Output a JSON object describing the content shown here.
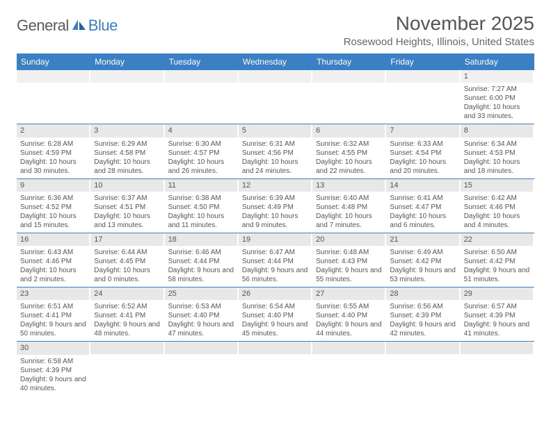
{
  "logo": {
    "part1": "General",
    "part2": "Blue"
  },
  "title": "November 2025",
  "location": "Rosewood Heights, Illinois, United States",
  "weekdays": [
    "Sunday",
    "Monday",
    "Tuesday",
    "Wednesday",
    "Thursday",
    "Friday",
    "Saturday"
  ],
  "colors": {
    "header_bg": "#3b7fc4",
    "daynum_bg": "#e8e8e8",
    "text": "#555555"
  },
  "weeks": [
    [
      {
        "n": "",
        "sunrise": "",
        "sunset": "",
        "daylight": ""
      },
      {
        "n": "",
        "sunrise": "",
        "sunset": "",
        "daylight": ""
      },
      {
        "n": "",
        "sunrise": "",
        "sunset": "",
        "daylight": ""
      },
      {
        "n": "",
        "sunrise": "",
        "sunset": "",
        "daylight": ""
      },
      {
        "n": "",
        "sunrise": "",
        "sunset": "",
        "daylight": ""
      },
      {
        "n": "",
        "sunrise": "",
        "sunset": "",
        "daylight": ""
      },
      {
        "n": "1",
        "sunrise": "Sunrise: 7:27 AM",
        "sunset": "Sunset: 6:00 PM",
        "daylight": "Daylight: 10 hours and 33 minutes."
      }
    ],
    [
      {
        "n": "2",
        "sunrise": "Sunrise: 6:28 AM",
        "sunset": "Sunset: 4:59 PM",
        "daylight": "Daylight: 10 hours and 30 minutes."
      },
      {
        "n": "3",
        "sunrise": "Sunrise: 6:29 AM",
        "sunset": "Sunset: 4:58 PM",
        "daylight": "Daylight: 10 hours and 28 minutes."
      },
      {
        "n": "4",
        "sunrise": "Sunrise: 6:30 AM",
        "sunset": "Sunset: 4:57 PM",
        "daylight": "Daylight: 10 hours and 26 minutes."
      },
      {
        "n": "5",
        "sunrise": "Sunrise: 6:31 AM",
        "sunset": "Sunset: 4:56 PM",
        "daylight": "Daylight: 10 hours and 24 minutes."
      },
      {
        "n": "6",
        "sunrise": "Sunrise: 6:32 AM",
        "sunset": "Sunset: 4:55 PM",
        "daylight": "Daylight: 10 hours and 22 minutes."
      },
      {
        "n": "7",
        "sunrise": "Sunrise: 6:33 AM",
        "sunset": "Sunset: 4:54 PM",
        "daylight": "Daylight: 10 hours and 20 minutes."
      },
      {
        "n": "8",
        "sunrise": "Sunrise: 6:34 AM",
        "sunset": "Sunset: 4:53 PM",
        "daylight": "Daylight: 10 hours and 18 minutes."
      }
    ],
    [
      {
        "n": "9",
        "sunrise": "Sunrise: 6:36 AM",
        "sunset": "Sunset: 4:52 PM",
        "daylight": "Daylight: 10 hours and 15 minutes."
      },
      {
        "n": "10",
        "sunrise": "Sunrise: 6:37 AM",
        "sunset": "Sunset: 4:51 PM",
        "daylight": "Daylight: 10 hours and 13 minutes."
      },
      {
        "n": "11",
        "sunrise": "Sunrise: 6:38 AM",
        "sunset": "Sunset: 4:50 PM",
        "daylight": "Daylight: 10 hours and 11 minutes."
      },
      {
        "n": "12",
        "sunrise": "Sunrise: 6:39 AM",
        "sunset": "Sunset: 4:49 PM",
        "daylight": "Daylight: 10 hours and 9 minutes."
      },
      {
        "n": "13",
        "sunrise": "Sunrise: 6:40 AM",
        "sunset": "Sunset: 4:48 PM",
        "daylight": "Daylight: 10 hours and 7 minutes."
      },
      {
        "n": "14",
        "sunrise": "Sunrise: 6:41 AM",
        "sunset": "Sunset: 4:47 PM",
        "daylight": "Daylight: 10 hours and 6 minutes."
      },
      {
        "n": "15",
        "sunrise": "Sunrise: 6:42 AM",
        "sunset": "Sunset: 4:46 PM",
        "daylight": "Daylight: 10 hours and 4 minutes."
      }
    ],
    [
      {
        "n": "16",
        "sunrise": "Sunrise: 6:43 AM",
        "sunset": "Sunset: 4:46 PM",
        "daylight": "Daylight: 10 hours and 2 minutes."
      },
      {
        "n": "17",
        "sunrise": "Sunrise: 6:44 AM",
        "sunset": "Sunset: 4:45 PM",
        "daylight": "Daylight: 10 hours and 0 minutes."
      },
      {
        "n": "18",
        "sunrise": "Sunrise: 6:46 AM",
        "sunset": "Sunset: 4:44 PM",
        "daylight": "Daylight: 9 hours and 58 minutes."
      },
      {
        "n": "19",
        "sunrise": "Sunrise: 6:47 AM",
        "sunset": "Sunset: 4:44 PM",
        "daylight": "Daylight: 9 hours and 56 minutes."
      },
      {
        "n": "20",
        "sunrise": "Sunrise: 6:48 AM",
        "sunset": "Sunset: 4:43 PM",
        "daylight": "Daylight: 9 hours and 55 minutes."
      },
      {
        "n": "21",
        "sunrise": "Sunrise: 6:49 AM",
        "sunset": "Sunset: 4:42 PM",
        "daylight": "Daylight: 9 hours and 53 minutes."
      },
      {
        "n": "22",
        "sunrise": "Sunrise: 6:50 AM",
        "sunset": "Sunset: 4:42 PM",
        "daylight": "Daylight: 9 hours and 51 minutes."
      }
    ],
    [
      {
        "n": "23",
        "sunrise": "Sunrise: 6:51 AM",
        "sunset": "Sunset: 4:41 PM",
        "daylight": "Daylight: 9 hours and 50 minutes."
      },
      {
        "n": "24",
        "sunrise": "Sunrise: 6:52 AM",
        "sunset": "Sunset: 4:41 PM",
        "daylight": "Daylight: 9 hours and 48 minutes."
      },
      {
        "n": "25",
        "sunrise": "Sunrise: 6:53 AM",
        "sunset": "Sunset: 4:40 PM",
        "daylight": "Daylight: 9 hours and 47 minutes."
      },
      {
        "n": "26",
        "sunrise": "Sunrise: 6:54 AM",
        "sunset": "Sunset: 4:40 PM",
        "daylight": "Daylight: 9 hours and 45 minutes."
      },
      {
        "n": "27",
        "sunrise": "Sunrise: 6:55 AM",
        "sunset": "Sunset: 4:40 PM",
        "daylight": "Daylight: 9 hours and 44 minutes."
      },
      {
        "n": "28",
        "sunrise": "Sunrise: 6:56 AM",
        "sunset": "Sunset: 4:39 PM",
        "daylight": "Daylight: 9 hours and 42 minutes."
      },
      {
        "n": "29",
        "sunrise": "Sunrise: 6:57 AM",
        "sunset": "Sunset: 4:39 PM",
        "daylight": "Daylight: 9 hours and 41 minutes."
      }
    ],
    [
      {
        "n": "30",
        "sunrise": "Sunrise: 6:58 AM",
        "sunset": "Sunset: 4:39 PM",
        "daylight": "Daylight: 9 hours and 40 minutes."
      },
      {
        "n": "",
        "sunrise": "",
        "sunset": "",
        "daylight": ""
      },
      {
        "n": "",
        "sunrise": "",
        "sunset": "",
        "daylight": ""
      },
      {
        "n": "",
        "sunrise": "",
        "sunset": "",
        "daylight": ""
      },
      {
        "n": "",
        "sunrise": "",
        "sunset": "",
        "daylight": ""
      },
      {
        "n": "",
        "sunrise": "",
        "sunset": "",
        "daylight": ""
      },
      {
        "n": "",
        "sunrise": "",
        "sunset": "",
        "daylight": ""
      }
    ]
  ]
}
